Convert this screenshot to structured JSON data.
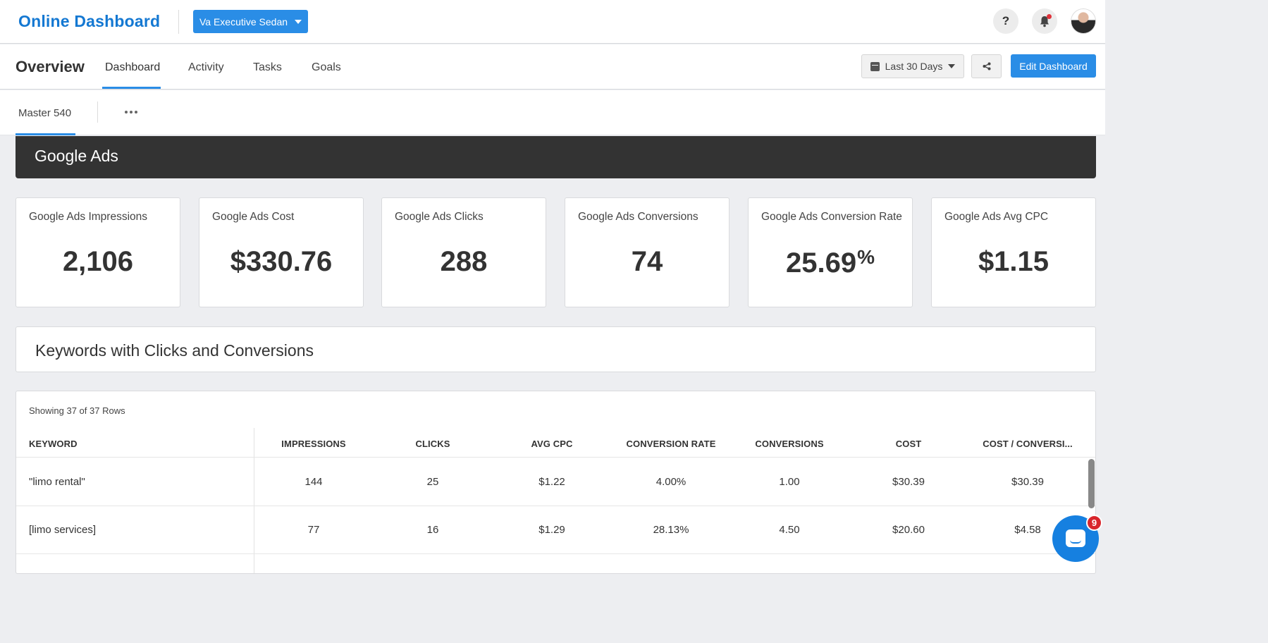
{
  "header": {
    "brand": "Online Dashboard",
    "client_selector": "Va Executive Sedan",
    "help_glyph": "?",
    "icons": [
      "help-icon",
      "bell-icon",
      "avatar"
    ]
  },
  "nav": {
    "title": "Overview",
    "tabs": [
      {
        "label": "Dashboard"
      },
      {
        "label": "Activity"
      },
      {
        "label": "Tasks"
      },
      {
        "label": "Goals"
      }
    ],
    "date_range": "Last 30 Days",
    "edit_label": "Edit Dashboard"
  },
  "subnav": {
    "tab": "Master 540"
  },
  "section": {
    "title": "Google Ads"
  },
  "kpis": [
    {
      "label": "Google Ads Impressions",
      "value": "2,106"
    },
    {
      "label": "Google Ads Cost",
      "value": "$330.76"
    },
    {
      "label": "Google Ads Clicks",
      "value": "288"
    },
    {
      "label": "Google Ads Conversions",
      "value": "74"
    },
    {
      "label": "Google Ads Conversion Rate",
      "value": "25.69",
      "suffix": "%"
    },
    {
      "label": "Google Ads Avg CPC",
      "value": "$1.15"
    }
  ],
  "keywords": {
    "title": "Keywords with Clicks and Conversions",
    "rows_info": "Showing 37 of 37 Rows",
    "columns": [
      "KEYWORD",
      "IMPRESSIONS",
      "CLICKS",
      "AVG CPC",
      "CONVERSION RATE",
      "CONVERSIONS",
      "COST",
      "COST / CONVERSI..."
    ],
    "rows": [
      [
        "\"limo rental\"",
        "144",
        "25",
        "$1.22",
        "4.00%",
        "1.00",
        "$30.39",
        "$30.39"
      ],
      [
        "[limo services]",
        "77",
        "16",
        "$1.29",
        "28.13%",
        "4.50",
        "$20.60",
        "$4.58"
      ]
    ]
  },
  "chat": {
    "badge": "9"
  },
  "colors": {
    "accent": "#2a8de6",
    "brand": "#1478d2",
    "section_bg": "#333333",
    "badge": "#d9262c"
  }
}
